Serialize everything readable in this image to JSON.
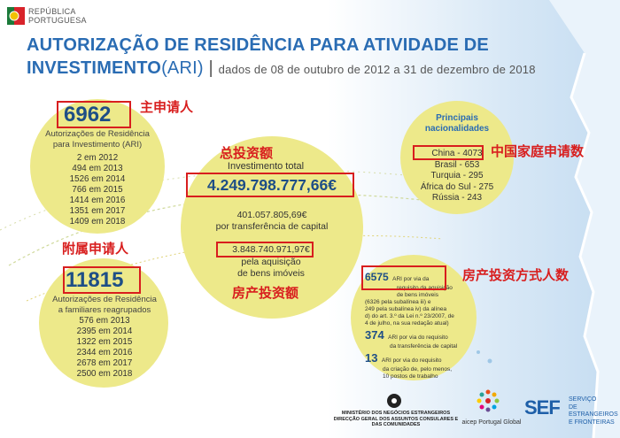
{
  "header": {
    "republic_line1": "REPÚBLICA",
    "republic_line2": "PORTUGUESA",
    "title_line1": "AUTORIZAÇÃO DE RESIDÊNCIA PARA ATIVIDADE DE",
    "title_line2_bold": "INVESTIMENTO",
    "title_line2_paren": "(ARI)",
    "title_sep": "|",
    "title_period": "dados de 08 de outubro de 2012 a 31 de dezembro de 2018"
  },
  "main_applicants": {
    "number": "6962",
    "annotation_cn": "主申请人",
    "label": [
      "Autorizações de Residência",
      "para Investimento (ARI)"
    ],
    "years": [
      "2 em 2012",
      "494 em 2013",
      "1526 em 2014",
      "766 em 2015",
      "1414 em 2016",
      "1351 em 2017",
      "1409 em 2018"
    ]
  },
  "investment": {
    "annotation_cn_total": "总投资额",
    "total_label": "Investimento total",
    "total_value": "4.249.798.777,66€",
    "capital_value": "401.057.805,69€",
    "capital_label": "por transferência de capital",
    "real_estate_value": "3.848.740.971,97€",
    "real_estate_label": [
      "pela aquisição",
      "de bens imóveis"
    ],
    "annotation_cn_real_estate": "房产投资额"
  },
  "family": {
    "annotation_cn": "附属申请人",
    "number": "11815",
    "label": [
      "Autorizações de Residência",
      "a familiares reagrupados"
    ],
    "years": [
      "576 em 2013",
      "2395 em 2014",
      "1322 em 2015",
      "2344 em 2016",
      "2678 em 2017",
      "2500 em 2018"
    ]
  },
  "nationalities": {
    "title": [
      "Principais",
      "nacionalidades"
    ],
    "items": [
      "China - 4073",
      "Brasil - 653",
      "Turquia - 295",
      "África do Sul - 275",
      "Rússia - 243"
    ],
    "annotation_cn": "中国家庭申请数"
  },
  "types": {
    "annotation_cn": "房产投资方式人数",
    "items": [
      {
        "number": "6575",
        "text": [
          "ARI por via da",
          "requisito da aquisição",
          "de bens imóveis",
          "(6326 pela subalínea iii) e",
          "249 pela subalínea iv) da alínea",
          "d) do art. 3.º da Lei n.º 23/2007, de",
          "4 de julho, na sua redação atual)"
        ]
      },
      {
        "number": "374",
        "text": [
          "ARI por via do requisito",
          "da transferência de capital"
        ]
      },
      {
        "number": "13",
        "text": [
          "ARI por via do requisito",
          "da criação de, pelo menos,",
          "10 postos de trabalho"
        ]
      }
    ]
  },
  "footer": {
    "ministry": [
      "MINISTÉRIO DOS NEGÓCIOS ESTRANGEIROS",
      "DIRECÇÃO GERAL DOS ASSUNTOS CONSULARES E",
      "DAS COMUNIDADES"
    ],
    "aicep": "aicep Portugal Global",
    "sef_logo": "SEF",
    "sef_text": [
      "SERVIÇO",
      "DE ESTRANGEIROS",
      "E FRONTEIRAS"
    ]
  },
  "colors": {
    "title_blue": "#2a6cb3",
    "circle_yellow": "#ede98a",
    "annotation_red": "#d81e1e",
    "map_blue": "#cfe3f4"
  }
}
